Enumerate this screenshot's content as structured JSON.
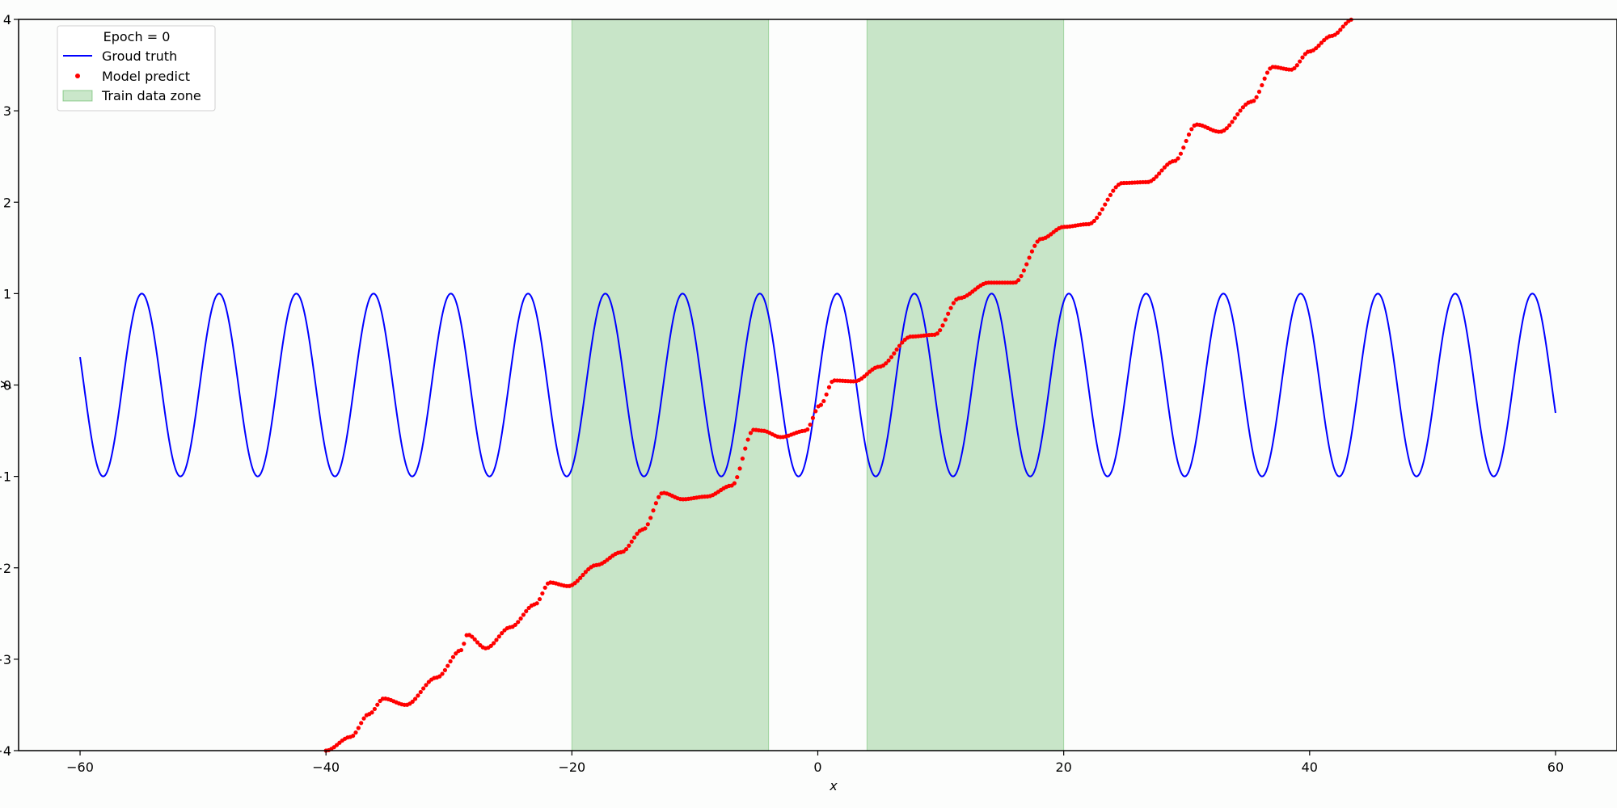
{
  "chart_data": {
    "type": "line",
    "title": "",
    "xlabel": "x",
    "ylabel": "y",
    "xlim": [
      -65,
      65
    ],
    "ylim": [
      -4,
      4
    ],
    "xticks": [
      -60,
      -40,
      -20,
      0,
      20,
      40,
      60
    ],
    "yticks": [
      -4,
      -3,
      -2,
      -1,
      0,
      1,
      2,
      3,
      4
    ],
    "xtick_labels": [
      "−60",
      "−40",
      "−20",
      "0",
      "20",
      "40",
      "60"
    ],
    "ytick_labels": [
      "−4",
      "−3",
      "−2",
      "−1",
      "0",
      "1",
      "2",
      "3",
      "4"
    ],
    "grid": false,
    "legend": {
      "placement": "top-left",
      "title": "Epoch = 0",
      "entries": [
        "Groud truth",
        "Model predict",
        "Train data zone"
      ]
    },
    "series": [
      {
        "name": "Groud truth",
        "kind": "line",
        "color": "#0000ff",
        "function": "y = sin(x)",
        "x_range": [
          -60,
          60
        ]
      },
      {
        "name": "Model predict",
        "kind": "scatter",
        "color": "#ff0000",
        "x": [
          -40,
          -38,
          -36.5,
          -35.3,
          -33.5,
          -31,
          -29,
          -28.5,
          -27,
          -25,
          -23,
          -21.8,
          -20.3,
          -18,
          -16,
          -14.2,
          -12.6,
          -11,
          -9,
          -7,
          -5.2,
          -4.5,
          -3,
          -1,
          0.2,
          1.3,
          3,
          5,
          7.6,
          9.5,
          11.5,
          13.9,
          16,
          18.2,
          20,
          22,
          24.8,
          26.8,
          29,
          30.8,
          32.7,
          35.3,
          37,
          38.5,
          40,
          41.8,
          43.5
        ],
        "y": [
          -4,
          -3.85,
          -3.6,
          -3.43,
          -3.5,
          -3.2,
          -2.9,
          -2.73,
          -2.88,
          -2.65,
          -2.4,
          -2.16,
          -2.2,
          -1.97,
          -1.83,
          -1.58,
          -1.18,
          -1.25,
          -1.22,
          -1.1,
          -0.49,
          -0.5,
          -0.57,
          -0.5,
          -0.22,
          0.05,
          0.04,
          0.2,
          0.53,
          0.55,
          0.95,
          1.12,
          1.12,
          1.6,
          1.73,
          1.76,
          2.21,
          2.22,
          2.45,
          2.85,
          2.77,
          3.1,
          3.48,
          3.45,
          3.65,
          3.82,
          4
        ]
      },
      {
        "name": "Train data zone",
        "kind": "span",
        "color": "#2ca02c",
        "ranges": [
          [
            -20,
            -4
          ],
          [
            4,
            20
          ]
        ]
      }
    ]
  }
}
